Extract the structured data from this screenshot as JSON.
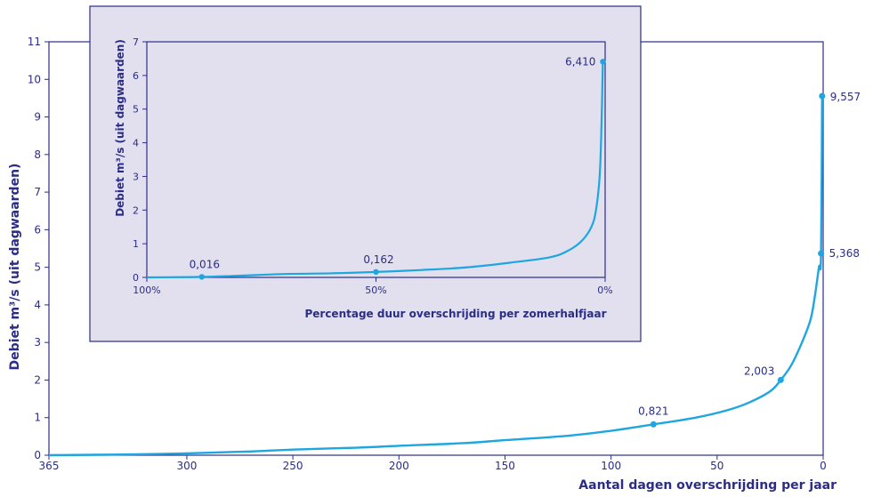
{
  "colors": {
    "axis": "#2b2d86",
    "line": "#1ea6e0",
    "inset_bg": "#e2e0ee",
    "text": "#2b2d86"
  },
  "chart_data": [
    {
      "type": "line",
      "xlabel": "Aantal dagen overschrijding per jaar",
      "ylabel": "Debiet m³/s (uit dagwaarden)",
      "xlim": [
        365,
        0
      ],
      "ylim": [
        0,
        11
      ],
      "x_ticks": [
        "365",
        "300",
        "250",
        "200",
        "150",
        "100",
        "50",
        "0"
      ],
      "y_ticks": [
        "0",
        "1",
        "2",
        "3",
        "4",
        "5",
        "6",
        "7",
        "8",
        "9",
        "10",
        "11"
      ],
      "grid": false,
      "series": [
        {
          "x": [
            365,
            330,
            300,
            270,
            250,
            220,
            200,
            170,
            150,
            120,
            100,
            80,
            60,
            45,
            35,
            25,
            20,
            15,
            10,
            6,
            4,
            2,
            1,
            0.5
          ],
          "y": [
            0.0,
            0.02,
            0.05,
            0.1,
            0.15,
            0.2,
            0.25,
            0.32,
            0.4,
            0.52,
            0.65,
            0.821,
            1.0,
            1.2,
            1.4,
            1.7,
            2.003,
            2.4,
            3.0,
            3.6,
            4.2,
            5.0,
            5.368,
            9.557
          ]
        }
      ],
      "markers": [
        {
          "x": 80,
          "y": 0.821,
          "label": "0,821"
        },
        {
          "x": 20,
          "y": 2.003,
          "label": "2,003"
        },
        {
          "x": 1,
          "y": 5.368,
          "label": "5,368"
        },
        {
          "x": 0.5,
          "y": 9.557,
          "label": "9,557"
        }
      ]
    },
    {
      "type": "line",
      "xlabel": "Percentage duur overschrijding per zomerhalfjaar",
      "ylabel": "Debiet m³/s (uit dagwaarden)",
      "xlim": [
        100,
        0
      ],
      "ylim": [
        0,
        7
      ],
      "x_ticks": [
        "100%",
        "50%",
        "0%"
      ],
      "y_ticks": [
        "0",
        "1",
        "2",
        "3",
        "4",
        "5",
        "6",
        "7"
      ],
      "grid": false,
      "series": [
        {
          "x": [
            100,
            95,
            88,
            80,
            70,
            60,
            50,
            40,
            30,
            20,
            12,
            8,
            5,
            3,
            2,
            1.2,
            0.8,
            0.5
          ],
          "y": [
            0.0,
            0.005,
            0.016,
            0.05,
            0.1,
            0.12,
            0.162,
            0.22,
            0.3,
            0.45,
            0.6,
            0.8,
            1.1,
            1.5,
            2.0,
            3.0,
            4.5,
            6.41
          ]
        }
      ],
      "markers": [
        {
          "x": 88,
          "y": 0.016,
          "label": "0,016"
        },
        {
          "x": 50,
          "y": 0.162,
          "label": "0,162"
        },
        {
          "x": 0.5,
          "y": 6.41,
          "label": "6,410"
        }
      ]
    }
  ]
}
